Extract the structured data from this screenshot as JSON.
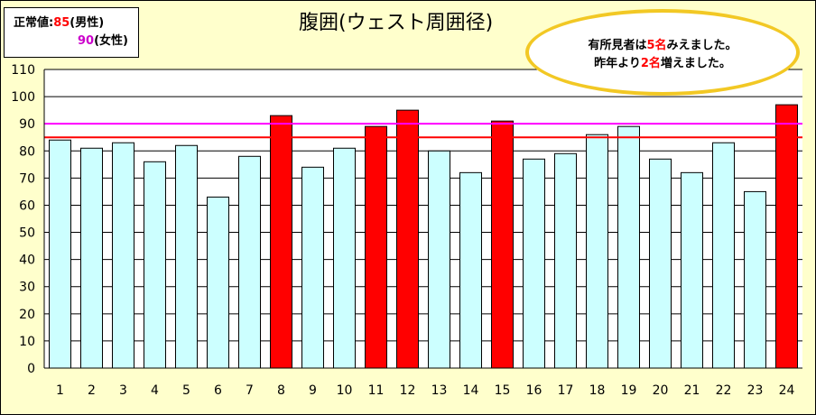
{
  "legend": {
    "male_prefix": "正常値:",
    "male_value": "85",
    "male_suffix": "(男性)",
    "female_value": "90",
    "female_suffix": "(女性)"
  },
  "title": "腹囲(ウェスト周囲径)",
  "callout": {
    "line1_a": "有所見者は",
    "line1_num": "5名",
    "line1_b": "みえました。",
    "line2_a": "昨年より",
    "line2_num": "2名",
    "line2_b": "増えました。"
  },
  "colors": {
    "background": "#FFFFCC",
    "normal_bar": "#CCFFFF",
    "high_bar": "#FF0000",
    "male_line": "#FF0000",
    "female_line": "#FF00FF",
    "callout_border": "#F2C824"
  },
  "chart_data": {
    "type": "bar",
    "title": "腹囲(ウェスト周囲径)",
    "categories": [
      "1",
      "2",
      "3",
      "4",
      "5",
      "6",
      "7",
      "8",
      "9",
      "10",
      "11",
      "12",
      "13",
      "14",
      "15",
      "16",
      "17",
      "18",
      "19",
      "20",
      "21",
      "22",
      "23",
      "24"
    ],
    "values": [
      84,
      81,
      83,
      76,
      82,
      63,
      78,
      93,
      74,
      81,
      89,
      95,
      80,
      72,
      91,
      77,
      79,
      86,
      89,
      77,
      72,
      83,
      65,
      97
    ],
    "highlighted": [
      false,
      false,
      false,
      false,
      false,
      false,
      false,
      true,
      false,
      false,
      true,
      true,
      false,
      false,
      true,
      false,
      false,
      false,
      false,
      false,
      false,
      false,
      false,
      true
    ],
    "ylim": [
      0,
      110
    ],
    "yticks": [
      0,
      10,
      20,
      30,
      40,
      50,
      60,
      70,
      80,
      90,
      100,
      110
    ],
    "reference_lines": [
      {
        "name": "男性",
        "value": 85,
        "color": "#FF0000"
      },
      {
        "name": "女性",
        "value": 90,
        "color": "#FF00FF"
      }
    ],
    "grid": true
  }
}
